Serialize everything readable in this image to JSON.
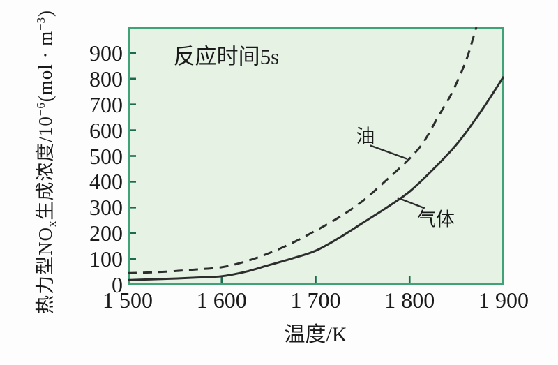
{
  "figure": {
    "x_title": "温度/K",
    "y_title_parts": {
      "p1": "热力型NO",
      "p1_sub": "x",
      "p2": "生成浓度/10",
      "p2_sup": "−6",
      "p3": "(mol · m",
      "p3_sup": "−3",
      "p4": ")"
    }
  },
  "colors": {
    "page_background": "#fdfdfd",
    "plot_background": "#e5f2e4",
    "plot_border": "#3fa377",
    "tick": "#1c6b50",
    "curve": "#2d2d2d",
    "text": "#1a1a1a"
  },
  "chart_data": {
    "type": "line",
    "title": "",
    "annotation": "反应时间5s",
    "annotation_at": [
      1605,
      886
    ],
    "xlabel": "温度/K",
    "ylabel": "热力型NOx生成浓度/10⁻⁶(mol·m⁻³)",
    "xlim": [
      1500,
      1900
    ],
    "ylim": [
      0,
      1000
    ],
    "grid": false,
    "legend_position": "inline-labels",
    "x_ticks": {
      "values": [
        1500,
        1600,
        1700,
        1800,
        1900
      ],
      "labels": [
        "1 500",
        "1 600",
        "1 700",
        "1 800",
        "1 900"
      ]
    },
    "y_ticks": {
      "values": [
        0,
        100,
        200,
        300,
        400,
        500,
        600,
        700,
        800,
        900
      ],
      "labels": [
        "0",
        "100",
        "200",
        "300",
        "400",
        "500",
        "600",
        "700",
        "800",
        "900"
      ]
    },
    "series": [
      {
        "id": "oil",
        "name": "油",
        "line_style": "dashed",
        "x": [
          1500,
          1525,
          1550,
          1575,
          1600,
          1625,
          1650,
          1675,
          1700,
          1725,
          1750,
          1775,
          1800,
          1815,
          1830,
          1845,
          1860,
          1871
        ],
        "y": [
          45,
          48,
          53,
          60,
          68,
          90,
          122,
          162,
          210,
          262,
          325,
          405,
          490,
          555,
          650,
          745,
          870,
          1000
        ]
      },
      {
        "id": "gas",
        "name": "气体",
        "line_style": "solid",
        "x": [
          1500,
          1525,
          1550,
          1575,
          1600,
          1625,
          1650,
          1675,
          1700,
          1725,
          1750,
          1775,
          1800,
          1825,
          1850,
          1875,
          1900
        ],
        "y": [
          18,
          21,
          24,
          28,
          33,
          50,
          76,
          102,
          132,
          182,
          240,
          298,
          362,
          448,
          545,
          668,
          808
        ]
      }
    ],
    "series_labels": [
      {
        "series": "oil",
        "text": "油",
        "text_at": [
          1753,
          576
        ],
        "leader": [
          [
            1758,
            541
          ],
          [
            1797,
            489
          ]
        ]
      },
      {
        "series": "gas",
        "text": "气体",
        "text_at": [
          1828,
          253
        ],
        "leader": [
          [
            1787,
            338
          ],
          [
            1816,
            297
          ]
        ]
      }
    ]
  }
}
